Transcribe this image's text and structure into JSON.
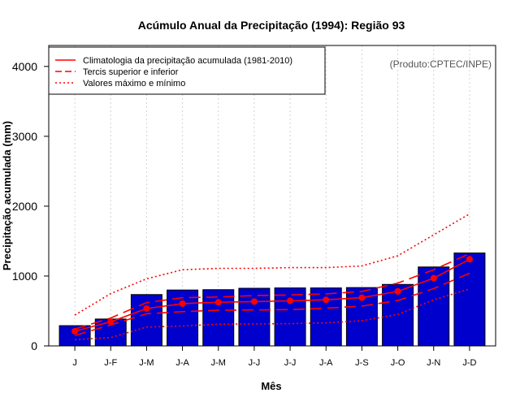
{
  "chart_data": {
    "type": "bar",
    "title": "Acúmulo Anual da Precipitação (1994): Região 93",
    "xlabel": "Mês",
    "ylabel": "Precipitação acumulada (mm)",
    "source_note": "(Produto:CPTEC/INPE)",
    "categories": [
      "J",
      "J-F",
      "J-M",
      "J-A",
      "J-M",
      "J-J",
      "J-J",
      "J-A",
      "J-S",
      "J-O",
      "J-N",
      "J-D"
    ],
    "ylim": [
      0,
      4300
    ],
    "yticks": [
      0,
      1000,
      2000,
      3000,
      4000
    ],
    "bar_color": "#0000cc",
    "line_color": "#ff0000",
    "values": [
      290,
      385,
      735,
      800,
      805,
      825,
      830,
      830,
      835,
      880,
      1130,
      1330
    ],
    "series": [
      {
        "name": "Climatologia da precipitação acumulada (1981-2010)",
        "style": "solid-points",
        "values": [
          210,
          345,
          535,
          605,
          625,
          635,
          645,
          660,
          690,
          780,
          970,
          1240
        ]
      },
      {
        "name": "Tercis superior",
        "style": "dashed",
        "values": [
          240,
          400,
          620,
          690,
          700,
          720,
          730,
          745,
          780,
          900,
          1090,
          1320
        ]
      },
      {
        "name": "Tercis inferior",
        "style": "dashed",
        "values": [
          150,
          300,
          460,
          490,
          510,
          515,
          520,
          540,
          570,
          650,
          820,
          1040
        ]
      },
      {
        "name": "Valores máximo",
        "style": "dotted",
        "values": [
          440,
          750,
          960,
          1090,
          1110,
          1110,
          1120,
          1120,
          1145,
          1290,
          1590,
          1890
        ]
      },
      {
        "name": "Valores mínimo",
        "style": "dotted",
        "values": [
          90,
          120,
          270,
          285,
          310,
          315,
          320,
          330,
          360,
          450,
          660,
          815
        ]
      }
    ],
    "legend": {
      "position": "top-left",
      "entries": [
        {
          "label": "Climatologia da precipitação acumulada (1981-2010)",
          "style": "solid"
        },
        {
          "label": "Tercis superior e inferior",
          "style": "dashed"
        },
        {
          "label": "Valores máximo e mínimo",
          "style": "dotted"
        }
      ]
    },
    "grid": "vertical dotted"
  }
}
